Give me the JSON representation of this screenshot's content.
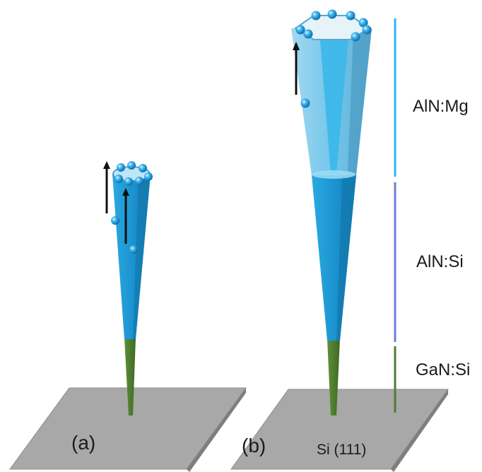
{
  "panels": [
    {
      "id": "a",
      "label": "(a)"
    },
    {
      "id": "b",
      "label": "(b)",
      "substrate_label": "Si (111)"
    }
  ],
  "layers": [
    {
      "name": "AlN:Mg",
      "color": "#2bb6ea"
    },
    {
      "name": "AlN:Si",
      "color": "#6f7fd0"
    },
    {
      "name": "GaN:Si",
      "color": "#4f7a3a"
    }
  ],
  "colors": {
    "substrate": "#a8a8a8",
    "aln_si_wire": "#1ea2dc",
    "aln_mg_shell": "#8ccbe8",
    "gan_wire": "#4a7a2b",
    "atom": "#2aa6e6",
    "arrow": "#111111"
  },
  "icons": [
    "upward-arrow-icon",
    "atom-sphere-icon"
  ]
}
